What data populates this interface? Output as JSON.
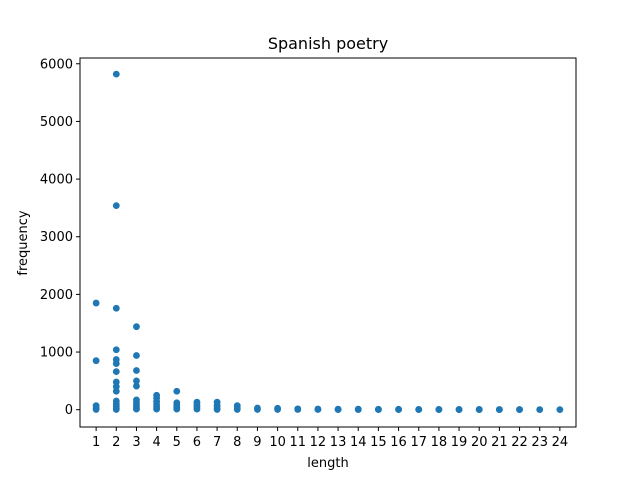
{
  "chart_data": {
    "type": "scatter",
    "title": "Spanish poetry",
    "xlabel": "length",
    "ylabel": "frequency",
    "xlim": [
      0.2,
      24.8
    ],
    "ylim": [
      -300,
      6100
    ],
    "grid": false,
    "legend": "none",
    "marker_color": "#1f77b4",
    "x_ticks": [
      1,
      2,
      3,
      4,
      5,
      6,
      7,
      8,
      9,
      10,
      11,
      12,
      13,
      14,
      15,
      16,
      17,
      18,
      19,
      20,
      21,
      22,
      23,
      24
    ],
    "y_ticks": [
      0,
      1000,
      2000,
      3000,
      4000,
      5000,
      6000
    ],
    "points": [
      {
        "x": 1,
        "y": 1850
      },
      {
        "x": 1,
        "y": 850
      },
      {
        "x": 1,
        "y": 70
      },
      {
        "x": 1,
        "y": 30
      },
      {
        "x": 1,
        "y": 5
      },
      {
        "x": 2,
        "y": 5820
      },
      {
        "x": 2,
        "y": 3540
      },
      {
        "x": 2,
        "y": 1760
      },
      {
        "x": 2,
        "y": 1040
      },
      {
        "x": 2,
        "y": 870
      },
      {
        "x": 2,
        "y": 800
      },
      {
        "x": 2,
        "y": 660
      },
      {
        "x": 2,
        "y": 480
      },
      {
        "x": 2,
        "y": 400
      },
      {
        "x": 2,
        "y": 320
      },
      {
        "x": 2,
        "y": 150
      },
      {
        "x": 2,
        "y": 100
      },
      {
        "x": 2,
        "y": 60
      },
      {
        "x": 2,
        "y": 20
      },
      {
        "x": 2,
        "y": 5
      },
      {
        "x": 3,
        "y": 1440
      },
      {
        "x": 3,
        "y": 940
      },
      {
        "x": 3,
        "y": 680
      },
      {
        "x": 3,
        "y": 500
      },
      {
        "x": 3,
        "y": 410
      },
      {
        "x": 3,
        "y": 170
      },
      {
        "x": 3,
        "y": 120
      },
      {
        "x": 3,
        "y": 80
      },
      {
        "x": 3,
        "y": 40
      },
      {
        "x": 3,
        "y": 10
      },
      {
        "x": 4,
        "y": 250
      },
      {
        "x": 4,
        "y": 200
      },
      {
        "x": 4,
        "y": 140
      },
      {
        "x": 4,
        "y": 90
      },
      {
        "x": 4,
        "y": 50
      },
      {
        "x": 4,
        "y": 10
      },
      {
        "x": 5,
        "y": 320
      },
      {
        "x": 5,
        "y": 120
      },
      {
        "x": 5,
        "y": 80
      },
      {
        "x": 5,
        "y": 40
      },
      {
        "x": 5,
        "y": 10
      },
      {
        "x": 6,
        "y": 130
      },
      {
        "x": 6,
        "y": 90
      },
      {
        "x": 6,
        "y": 50
      },
      {
        "x": 6,
        "y": 10
      },
      {
        "x": 7,
        "y": 130
      },
      {
        "x": 7,
        "y": 70
      },
      {
        "x": 7,
        "y": 30
      },
      {
        "x": 7,
        "y": 5
      },
      {
        "x": 8,
        "y": 70
      },
      {
        "x": 8,
        "y": 30
      },
      {
        "x": 8,
        "y": 5
      },
      {
        "x": 9,
        "y": 30
      },
      {
        "x": 9,
        "y": 5
      },
      {
        "x": 10,
        "y": 25
      },
      {
        "x": 10,
        "y": 5
      },
      {
        "x": 11,
        "y": 15
      },
      {
        "x": 11,
        "y": 3
      },
      {
        "x": 12,
        "y": 12
      },
      {
        "x": 12,
        "y": 3
      },
      {
        "x": 13,
        "y": 10
      },
      {
        "x": 13,
        "y": 2
      },
      {
        "x": 14,
        "y": 10
      },
      {
        "x": 14,
        "y": 2
      },
      {
        "x": 15,
        "y": 8
      },
      {
        "x": 15,
        "y": 2
      },
      {
        "x": 16,
        "y": 8
      },
      {
        "x": 16,
        "y": 2
      },
      {
        "x": 17,
        "y": 6
      },
      {
        "x": 17,
        "y": 1
      },
      {
        "x": 18,
        "y": 6
      },
      {
        "x": 18,
        "y": 1
      },
      {
        "x": 19,
        "y": 5
      },
      {
        "x": 19,
        "y": 1
      },
      {
        "x": 20,
        "y": 5
      },
      {
        "x": 20,
        "y": 1
      },
      {
        "x": 21,
        "y": 4
      },
      {
        "x": 21,
        "y": 1
      },
      {
        "x": 22,
        "y": 3
      },
      {
        "x": 22,
        "y": 1
      },
      {
        "x": 23,
        "y": 2
      },
      {
        "x": 24,
        "y": 1
      }
    ]
  }
}
